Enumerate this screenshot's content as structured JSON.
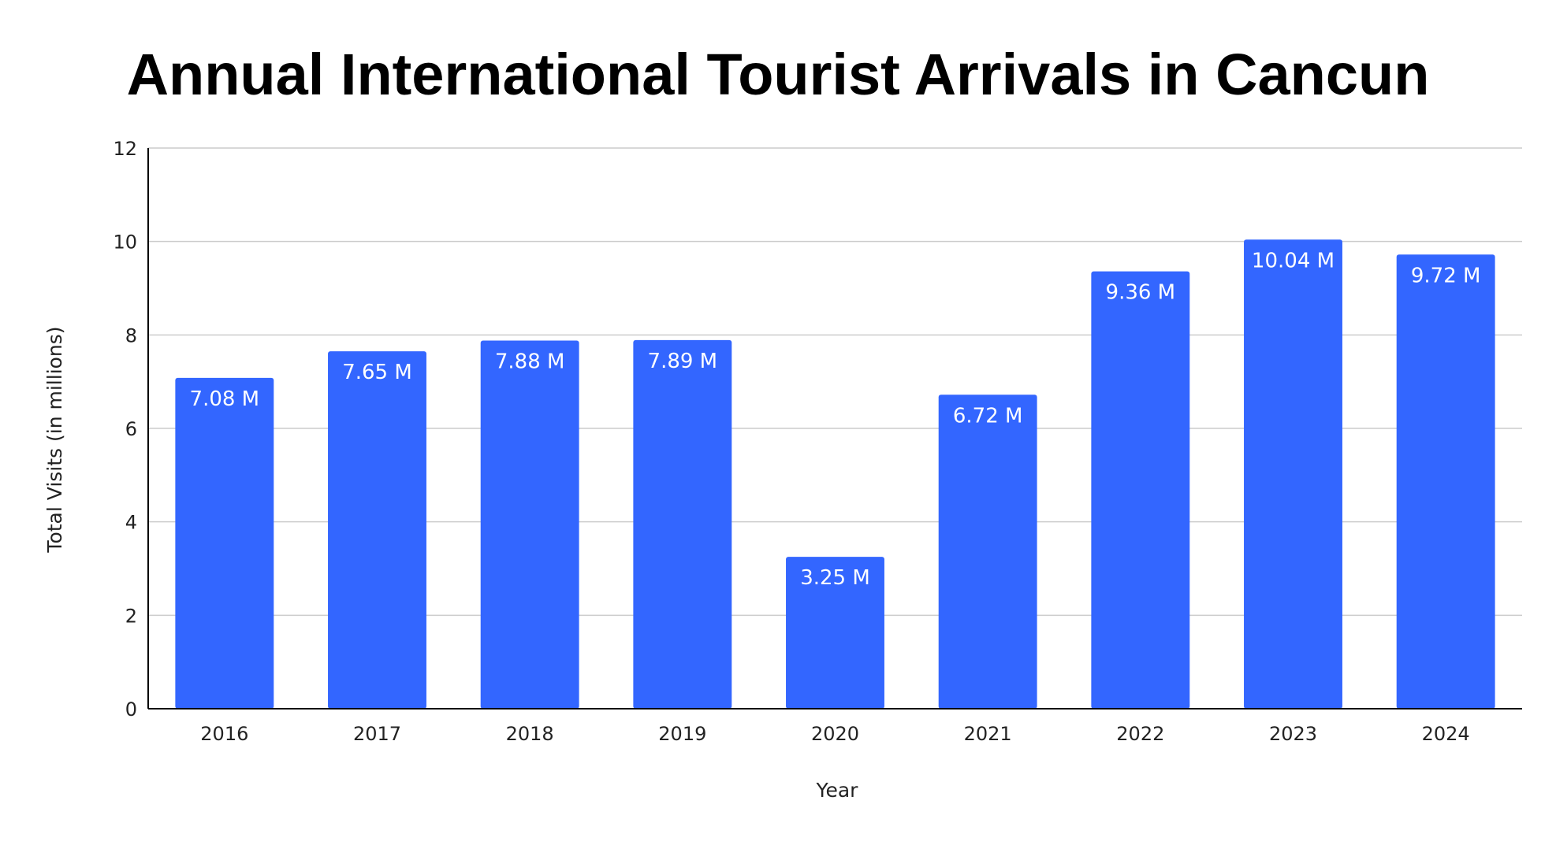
{
  "chart_data": {
    "type": "bar",
    "title": "Annual International Tourist Arrivals in Cancun",
    "xlabel": "Year",
    "ylabel": "Total Visits (in millions)",
    "categories": [
      "2016",
      "2017",
      "2018",
      "2019",
      "2020",
      "2021",
      "2022",
      "2023",
      "2024"
    ],
    "values": [
      7.08,
      7.65,
      7.88,
      7.89,
      3.25,
      6.72,
      9.36,
      10.04,
      9.72
    ],
    "data_labels": [
      "7.08 M",
      "7.65 M",
      "7.88 M",
      "7.89 M",
      "3.25 M",
      "6.72 M",
      "9.36 M",
      "10.04 M",
      "9.72 M"
    ],
    "ylim": [
      0,
      12
    ],
    "yticks": [
      0,
      2,
      4,
      6,
      8,
      10,
      12
    ],
    "grid": true,
    "legend": "none",
    "colors": {
      "bar": "#3366ff",
      "grid": "#cccccc",
      "axis": "#000000"
    }
  }
}
